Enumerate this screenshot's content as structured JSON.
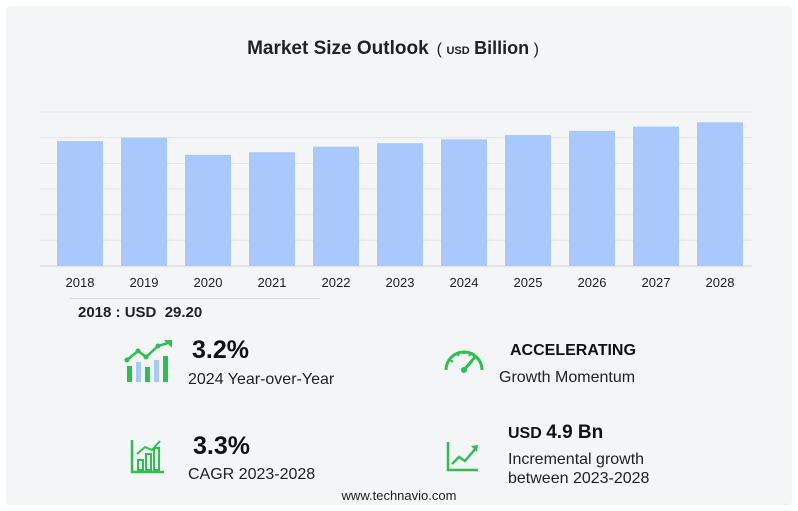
{
  "title": "Market Size Outlook",
  "title_unit_prefix": "USD",
  "title_unit": "Billion",
  "chart_data": {
    "type": "bar",
    "categories": [
      "2018",
      "2019",
      "2020",
      "2021",
      "2022",
      "2023",
      "2024",
      "2025",
      "2026",
      "2027",
      "2028"
    ],
    "values": [
      29.2,
      30.0,
      26.0,
      26.6,
      27.9,
      28.7,
      29.6,
      30.6,
      31.6,
      32.6,
      33.6
    ],
    "ylim": [
      0,
      36
    ],
    "grid": true,
    "bar_color": "#a9c8fb"
  },
  "base_label": "2018 : USD  29.20",
  "stats": {
    "yoy": {
      "value": "3.2%",
      "label": "2024 Year-over-Year",
      "icon": "growth-chart-icon"
    },
    "momentum": {
      "value": "ACCELERATING",
      "label": "Growth Momentum",
      "icon": "speedometer-icon"
    },
    "cagr": {
      "value": "3.3%",
      "label": "CAGR 2023-2028",
      "icon": "bar-chart-icon"
    },
    "incremental": {
      "prefix": "USD",
      "value": "4.9 Bn",
      "label_line1": "Incremental growth",
      "label_line2": "between 2023-2028",
      "icon": "line-chart-icon"
    }
  },
  "colors": {
    "accent_green": "#2ec04f",
    "bar": "#a9c8fb",
    "grid": "#e2e4e8"
  },
  "footer": "www.technavio.com"
}
